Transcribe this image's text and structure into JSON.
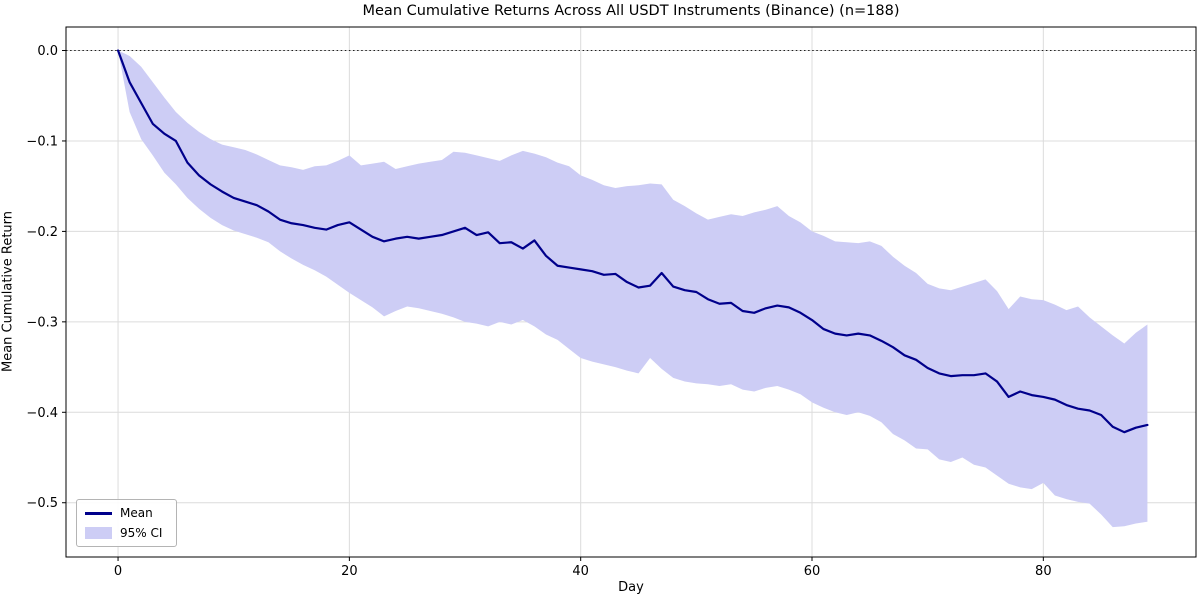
{
  "chart_data": {
    "type": "line",
    "title": "Mean Cumulative Returns Across All USDT Instruments (Binance) (n=188)",
    "xlabel": "Day",
    "ylabel": "Mean Cumulative Return",
    "x_start": 0,
    "x_step": 1,
    "n_points": 90,
    "xlim": [
      -4.5,
      93.2
    ],
    "ylim": [
      -0.56,
      0.026
    ],
    "xticks": [
      0,
      20,
      40,
      60,
      80
    ],
    "xtick_labels": [
      "0",
      "20",
      "40",
      "60",
      "80"
    ],
    "yticks": [
      0.0,
      -0.1,
      -0.2,
      -0.3,
      -0.4,
      -0.5
    ],
    "ytick_labels": [
      "0.0",
      "−0.1",
      "−0.2",
      "−0.3",
      "−0.4",
      "−0.5"
    ],
    "grid": true,
    "zero_line": {
      "y": 0.0,
      "style": "dotted",
      "color": "#000000"
    },
    "legend": {
      "position": "lower left",
      "entries": [
        {
          "label": "Mean",
          "type": "line"
        },
        {
          "label": "95% CI",
          "type": "patch"
        }
      ]
    },
    "colors": {
      "mean_line": "#00008b",
      "ci_band": "#cdcdf5",
      "grid": "#dcdcdc",
      "frame": "#000000",
      "background": "#ffffff"
    },
    "series": [
      {
        "name": "Mean",
        "values": [
          0.0,
          -0.035,
          -0.058,
          -0.081,
          -0.092,
          -0.1,
          -0.124,
          -0.138,
          -0.148,
          -0.156,
          -0.163,
          -0.167,
          -0.171,
          -0.178,
          -0.187,
          -0.191,
          -0.193,
          -0.196,
          -0.198,
          -0.193,
          -0.19,
          -0.198,
          -0.206,
          -0.211,
          -0.208,
          -0.206,
          -0.208,
          -0.206,
          -0.204,
          -0.2,
          -0.196,
          -0.204,
          -0.201,
          -0.213,
          -0.212,
          -0.219,
          -0.21,
          -0.227,
          -0.238,
          -0.24,
          -0.242,
          -0.244,
          -0.248,
          -0.247,
          -0.256,
          -0.262,
          -0.26,
          -0.246,
          -0.261,
          -0.265,
          -0.267,
          -0.275,
          -0.28,
          -0.279,
          -0.288,
          -0.29,
          -0.285,
          -0.282,
          -0.284,
          -0.29,
          -0.298,
          -0.308,
          -0.313,
          -0.315,
          -0.313,
          -0.315,
          -0.321,
          -0.328,
          -0.337,
          -0.342,
          -0.351,
          -0.357,
          -0.36,
          -0.359,
          -0.359,
          -0.357,
          -0.366,
          -0.383,
          -0.377,
          -0.381,
          -0.383,
          -0.386,
          -0.392,
          -0.396,
          -0.398,
          -0.403,
          -0.416,
          -0.422,
          -0.417,
          -0.414
        ]
      },
      {
        "name": "95% CI upper",
        "values": [
          0.0,
          -0.006,
          -0.018,
          -0.035,
          -0.052,
          -0.068,
          -0.08,
          -0.09,
          -0.098,
          -0.104,
          -0.107,
          -0.11,
          -0.115,
          -0.121,
          -0.127,
          -0.129,
          -0.132,
          -0.128,
          -0.127,
          -0.122,
          -0.116,
          -0.127,
          -0.125,
          -0.123,
          -0.131,
          -0.128,
          -0.125,
          -0.123,
          -0.121,
          -0.112,
          -0.113,
          -0.116,
          -0.119,
          -0.122,
          -0.116,
          -0.111,
          -0.114,
          -0.118,
          -0.124,
          -0.128,
          -0.138,
          -0.143,
          -0.149,
          -0.152,
          -0.15,
          -0.149,
          -0.147,
          -0.148,
          -0.165,
          -0.172,
          -0.18,
          -0.187,
          -0.184,
          -0.181,
          -0.183,
          -0.179,
          -0.176,
          -0.172,
          -0.183,
          -0.19,
          -0.2,
          -0.205,
          -0.211,
          -0.212,
          -0.213,
          -0.211,
          -0.216,
          -0.228,
          -0.238,
          -0.246,
          -0.258,
          -0.263,
          -0.265,
          -0.261,
          -0.257,
          -0.253,
          -0.266,
          -0.286,
          -0.272,
          -0.275,
          -0.276,
          -0.281,
          -0.287,
          -0.283,
          -0.295,
          -0.305,
          -0.315,
          -0.324,
          -0.312,
          -0.303
        ]
      },
      {
        "name": "95% CI lower",
        "values": [
          0.0,
          -0.068,
          -0.098,
          -0.116,
          -0.135,
          -0.148,
          -0.163,
          -0.175,
          -0.185,
          -0.193,
          -0.199,
          -0.203,
          -0.207,
          -0.212,
          -0.222,
          -0.23,
          -0.237,
          -0.243,
          -0.25,
          -0.259,
          -0.268,
          -0.276,
          -0.284,
          -0.294,
          -0.288,
          -0.283,
          -0.285,
          -0.288,
          -0.291,
          -0.295,
          -0.3,
          -0.302,
          -0.305,
          -0.3,
          -0.303,
          -0.298,
          -0.305,
          -0.314,
          -0.32,
          -0.33,
          -0.34,
          -0.344,
          -0.347,
          -0.35,
          -0.354,
          -0.357,
          -0.34,
          -0.352,
          -0.362,
          -0.366,
          -0.368,
          -0.369,
          -0.371,
          -0.369,
          -0.375,
          -0.377,
          -0.373,
          -0.371,
          -0.375,
          -0.38,
          -0.389,
          -0.395,
          -0.4,
          -0.403,
          -0.4,
          -0.404,
          -0.411,
          -0.424,
          -0.431,
          -0.44,
          -0.441,
          -0.452,
          -0.455,
          -0.45,
          -0.458,
          -0.461,
          -0.47,
          -0.479,
          -0.483,
          -0.485,
          -0.478,
          -0.492,
          -0.496,
          -0.499,
          -0.501,
          -0.513,
          -0.527,
          -0.526,
          -0.523,
          -0.521
        ]
      }
    ]
  }
}
